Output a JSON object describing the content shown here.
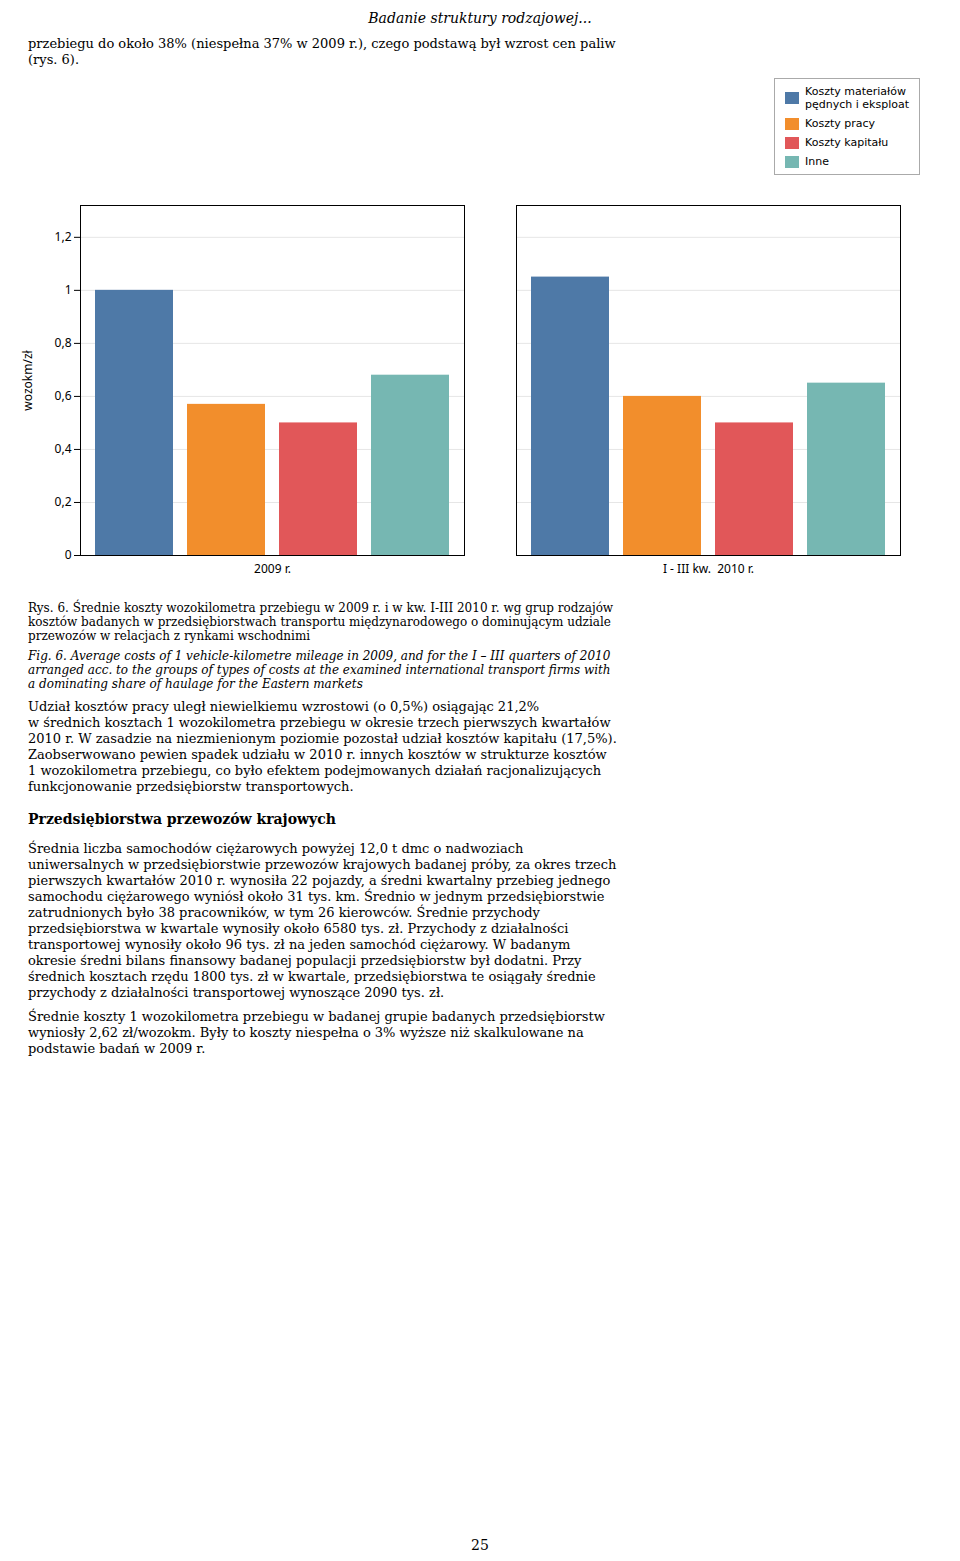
{
  "chart_data": {
    "type": "bar",
    "categories": [
      "2009 r.",
      "I - III kw.  2010 r."
    ],
    "series": [
      {
        "name": "Koszty materiałów\npędnych i eksploat",
        "values": [
          1.0,
          1.05
        ]
      },
      {
        "name": "Koszty pracy",
        "values": [
          0.57,
          0.6
        ]
      },
      {
        "name": "Koszty kapitału",
        "values": [
          0.5,
          0.5
        ]
      },
      {
        "name": "Inne",
        "values": [
          0.68,
          0.65
        ]
      }
    ],
    "ylabel": "wozokm/zł",
    "ylim": [
      0,
      1.32
    ],
    "yticks": [
      0,
      {
        "value": 0.2,
        "label": "0,2"
      },
      {
        "value": 0.4,
        "label": "0,4"
      },
      {
        "value": 0.6,
        "label": "0,6"
      },
      {
        "value": 0.8,
        "label": "0,8"
      },
      1,
      {
        "value": 1.2,
        "label": "1,2"
      }
    ],
    "grid": true,
    "legend": "upper right",
    "annotations": [
      "Badanie struktury rodzajowej...",
      "przebiegu do około 38% (niespełna 37% w 2009 r.), czego podstawą był wzrost cen paliw\n(rys. 6).",
      "Rys. 6. Średnie koszty wozokilometra przebiegu w 2009 r. i w kw. I-III 2010 r. wg grup rodzajów\nkosztów badanych w przedsiębiorstwach transportu międzynarodowego o dominującym udziale\nprzewozów w relacjach z rynkami wschodnimi",
      "Fig. 6. Average costs of 1 vehicle-kilometre mileage in 2009, and for the I – III quarters of 2010\narranged acc. to the groups of types of costs at the examined international transport firms with\na dominating share of haulage for the Eastern  markets",
      "Udział kosztów pracy uległ niewielkiemu wzrostowi (o 0,5%) osiągając 21,2%\nw średnich kosztach 1 wozokilometra przebiegu w okresie trzech pierwszych kwartałów\n2010 r. W zasadzie na niezmienionym poziomie pozostał udział kosztów kapitału (17,5%).\nZaobserwowano pewien spadek udziału w 2010 r. innych kosztów w strukturze kosztów\n1 wozokilometra przebiegu, co było efektem podejmowanych działań racjonalizujących\nfunkcjonowanie przedsiębiorstw transportowych.",
      "Przedsiębiorstwa przewozów krajowych",
      "    Średnia liczba samochodów ciężarowych powyżej 12,0 t dmc o nadwoziach\nuniwersalnych w przedsiębiorstwie przewozów krajowych badanej próby, za okres trzech\npierwszych kwartałów 2010 r. wynosiła 22 pojazdy, a średni kwartalny przebieg jednego\nsamochodu ciężarowego wyniósł około 31 tys. km. Średnio w jednym przedsiębiorstwie\nzatrudnionych było 38 pracowników, w tym 26 kierowców. Średnie przychody\nprzedsiębiorstwa w kwartale wynosiły około 6580 tys. zł. Przychody z działalności\ntransportowej wynosiły około 96 tys. zł na jeden samochód ciężarowy. W badanym\nokresie średni bilans finansowy badanej populacji przedsiębiorstw był dodatni. Przy\nśrednich kosztach rzędu 1800 tys. zł w kwartale, przedsiębiorstwa te osiągały średnie\nprzychody z działalności transportowej wynoszące 2090 tys. zł.",
      "    Średnie koszty 1 wozokilometra przebiegu w badanej grupie badanych przedsiębiorstw\nwyniosły 2,62 zł/wozokm. Były to koszty niespełna o 3% wyższe niż skalkulowane na\npodstawie badań w 2009 r.",
      "25"
    ]
  }
}
